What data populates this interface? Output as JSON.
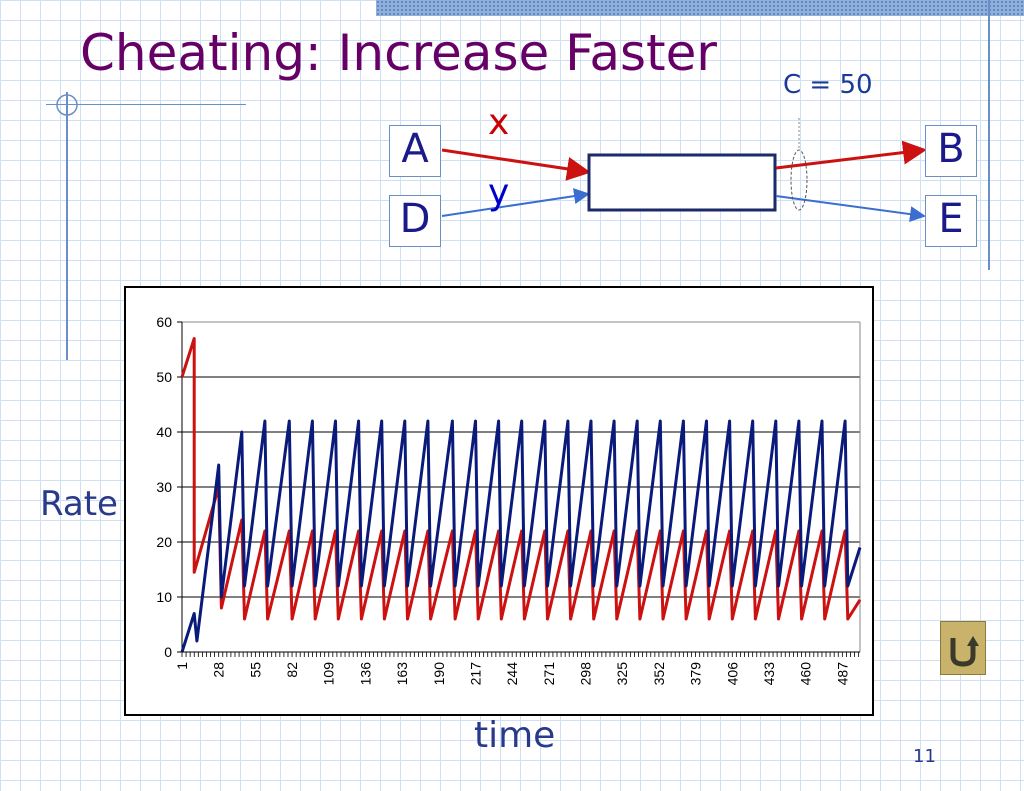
{
  "slide": {
    "title": "Cheating: Increase Faster",
    "page_number": "11",
    "back_icon": "return-arrow-icon"
  },
  "diagram": {
    "capacity_label": "C = 50",
    "flow_x_label": "x",
    "flow_y_label": "y",
    "nodes": {
      "a": "A",
      "b": "B",
      "d": "D",
      "e": "E"
    },
    "colors": {
      "x": "#cc1111",
      "y": "#3a6fd1",
      "title": "#660066"
    }
  },
  "chart_data": {
    "type": "line",
    "ylabel": "Rate",
    "xlabel": "time",
    "ylim": [
      0,
      60
    ],
    "yticks": [
      0,
      10,
      20,
      30,
      40,
      50,
      60
    ],
    "x_ticks": [
      "1",
      "28",
      "55",
      "82",
      "109",
      "136",
      "163",
      "190",
      "217",
      "244",
      "271",
      "298",
      "325",
      "352",
      "379",
      "406",
      "433",
      "460",
      "487"
    ],
    "x_range": [
      1,
      500
    ],
    "grid": "horizontal",
    "series": [
      {
        "color": "#cc1111",
        "x": [
          1,
          10,
          10,
          28,
          30,
          45,
          47,
          62,
          64,
          80,
          82,
          97,
          99,
          114,
          116,
          131,
          133,
          148,
          150,
          165,
          167,
          182,
          184,
          200,
          202,
          217,
          219,
          234,
          236,
          251,
          253,
          268,
          270,
          285,
          287,
          302,
          304,
          319,
          321,
          336,
          338,
          353,
          355,
          370,
          372,
          387,
          389,
          404,
          406,
          421,
          423,
          438,
          440,
          455,
          457,
          472,
          474,
          489,
          491,
          500
        ],
        "y": [
          50,
          57,
          14.5,
          30,
          8,
          24,
          6,
          22,
          6,
          22,
          6,
          22,
          6,
          22,
          6,
          22,
          6,
          22,
          6,
          22,
          6,
          22,
          6,
          22,
          6,
          22,
          6,
          22,
          6,
          22,
          6,
          22,
          6,
          22,
          6,
          22,
          6,
          22,
          6,
          22,
          6,
          22,
          6,
          22,
          6,
          22,
          6,
          22,
          6,
          22,
          6,
          22,
          6,
          22,
          6,
          22,
          6,
          22,
          6,
          9.5
        ]
      },
      {
        "color": "#0a1a7a",
        "x": [
          1,
          10,
          12,
          28,
          30,
          45,
          47,
          62,
          64,
          80,
          82,
          97,
          99,
          114,
          116,
          131,
          133,
          148,
          150,
          165,
          167,
          182,
          184,
          200,
          202,
          217,
          219,
          234,
          236,
          251,
          253,
          268,
          270,
          285,
          287,
          302,
          304,
          319,
          321,
          336,
          338,
          353,
          355,
          370,
          372,
          387,
          389,
          404,
          406,
          421,
          423,
          438,
          440,
          455,
          457,
          472,
          474,
          489,
          491,
          500
        ],
        "y": [
          0,
          7,
          2,
          34,
          10,
          40,
          12,
          42,
          12,
          42,
          12,
          42,
          12,
          42,
          12,
          42,
          12,
          42,
          12,
          42,
          12,
          42,
          12,
          42,
          12,
          42,
          12,
          42,
          12,
          42,
          12,
          42,
          12,
          42,
          12,
          42,
          12,
          42,
          12,
          42,
          12,
          42,
          12,
          42,
          12,
          42,
          12,
          42,
          12,
          42,
          12,
          42,
          12,
          42,
          12,
          42,
          12,
          42,
          12,
          19
        ]
      }
    ]
  }
}
